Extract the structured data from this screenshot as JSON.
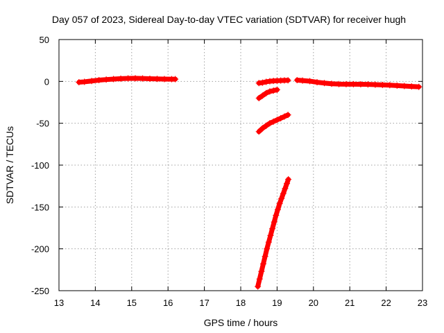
{
  "chart_data": {
    "type": "scatter",
    "title": "Day 057 of 2023, Sidereal Day-to-day VTEC variation (SDTVAR) for receiver hugh",
    "xlabel": "GPS time / hours",
    "ylabel": "SDTVAR / TECUs",
    "xlim": [
      13,
      23
    ],
    "ylim": [
      -250,
      50
    ],
    "xticks": [
      "13",
      "14",
      "15",
      "16",
      "17",
      "18",
      "19",
      "20",
      "21",
      "22",
      "23"
    ],
    "yticks": [
      "50",
      "0",
      "-50",
      "-100",
      "-150",
      "-200",
      "-250"
    ],
    "grid": true,
    "marker": "+",
    "series_color": "#ff0000",
    "series": [
      {
        "name": "segment-1",
        "x": [
          13.55,
          13.7,
          13.9,
          14.1,
          14.3,
          14.5,
          14.7,
          14.9,
          15.1,
          15.3,
          15.5,
          15.7,
          15.9,
          16.1,
          16.2
        ],
        "y": [
          -1,
          -0.5,
          0.5,
          1.5,
          2.2,
          2.8,
          3.3,
          3.6,
          3.7,
          3.5,
          3.2,
          3.0,
          2.8,
          2.7,
          2.7
        ]
      },
      {
        "name": "segment-2",
        "x": [
          18.5,
          18.6,
          18.7,
          18.8,
          18.9,
          19.0,
          19.1,
          19.2,
          19.3
        ],
        "y": [
          -2.0,
          -1.5,
          -0.5,
          0.2,
          0.6,
          0.8,
          1.0,
          1.2,
          1.3
        ]
      },
      {
        "name": "segment-3",
        "x": [
          18.5,
          18.6,
          18.7,
          18.8,
          18.9,
          19.0
        ],
        "y": [
          -20,
          -17,
          -14,
          -12,
          -11,
          -10
        ]
      },
      {
        "name": "segment-4",
        "x": [
          18.5,
          18.6,
          18.7,
          18.8,
          18.9,
          19.0,
          19.1,
          19.2,
          19.3
        ],
        "y": [
          -60,
          -56,
          -53,
          -50,
          -48,
          -46,
          -44,
          -42,
          -40
        ]
      },
      {
        "name": "segment-5",
        "x": [
          18.47,
          18.52,
          18.57,
          18.62,
          18.67,
          18.72,
          18.77,
          18.82,
          18.87,
          18.92,
          18.97,
          19.02,
          19.07,
          19.12,
          19.17,
          19.22,
          19.27,
          19.31
        ],
        "y": [
          -245,
          -236,
          -227,
          -218,
          -209,
          -200,
          -192,
          -184,
          -176,
          -168,
          -160,
          -153,
          -146,
          -140,
          -134,
          -128,
          -122,
          -117
        ]
      },
      {
        "name": "segment-6",
        "x": [
          19.55,
          19.7,
          19.9,
          20.1,
          20.3,
          20.5,
          20.7,
          20.9,
          21.1,
          21.3,
          21.5,
          21.7,
          21.9,
          22.1,
          22.3,
          22.5,
          22.7,
          22.9
        ],
        "y": [
          1.5,
          1.0,
          0.3,
          -1.0,
          -2.0,
          -2.8,
          -3.2,
          -3.3,
          -3.3,
          -3.4,
          -3.6,
          -3.9,
          -4.2,
          -4.5,
          -5.0,
          -5.5,
          -6.0,
          -6.5
        ]
      }
    ]
  }
}
